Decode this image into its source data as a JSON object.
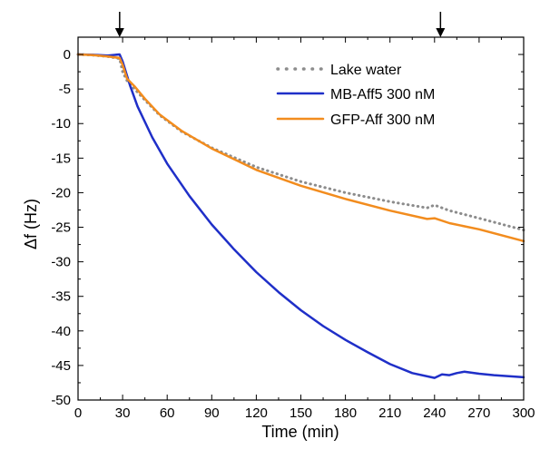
{
  "chart_data": {
    "type": "line",
    "title": "",
    "xlabel": "Time (min)",
    "ylabel": "Δf (Hz)",
    "xlim": [
      0,
      300
    ],
    "ylim": [
      -50,
      2.5
    ],
    "xticks": [
      0,
      30,
      60,
      90,
      120,
      150,
      180,
      210,
      240,
      270,
      300
    ],
    "yticks": [
      0,
      -5,
      -10,
      -15,
      -20,
      -25,
      -30,
      -35,
      -40,
      -45,
      -50
    ],
    "grid": false,
    "legend_position": "top-right",
    "annotations": [
      {
        "type": "arrow-down",
        "x": 28
      },
      {
        "type": "arrow-down",
        "x": 244
      }
    ],
    "series": [
      {
        "name": "Lake water",
        "color": "#8c8c8c",
        "style": "dotted",
        "x": [
          0,
          10,
          20,
          28,
          30,
          33,
          38,
          45,
          55,
          70,
          90,
          120,
          150,
          180,
          210,
          235,
          240,
          250,
          270,
          300
        ],
        "y": [
          0,
          -0.1,
          -0.3,
          -0.6,
          -2.5,
          -3.8,
          -5.0,
          -6.6,
          -8.8,
          -11.2,
          -13.5,
          -16.3,
          -18.4,
          -20.0,
          -21.3,
          -22.2,
          -21.8,
          -22.6,
          -23.7,
          -25.4
        ]
      },
      {
        "name": "MB-Aff5 300 nM",
        "color": "#1f2fc8",
        "style": "solid",
        "x": [
          0,
          10,
          20,
          28,
          30,
          35,
          40,
          50,
          60,
          75,
          90,
          105,
          120,
          135,
          150,
          165,
          180,
          195,
          210,
          225,
          240,
          245,
          250,
          255,
          260,
          270,
          280,
          300
        ],
        "y": [
          0,
          -0.05,
          -0.15,
          0,
          -1.0,
          -4.5,
          -7.5,
          -12.0,
          -15.8,
          -20.5,
          -24.6,
          -28.2,
          -31.5,
          -34.4,
          -37.0,
          -39.3,
          -41.3,
          -43.1,
          -44.8,
          -46.1,
          -46.8,
          -46.3,
          -46.4,
          -46.1,
          -45.9,
          -46.2,
          -46.4,
          -46.7
        ]
      },
      {
        "name": "GFP-Aff 300 nM",
        "color": "#f28c1e",
        "style": "solid",
        "x": [
          0,
          10,
          20,
          28,
          30,
          33,
          38,
          45,
          55,
          70,
          90,
          120,
          150,
          180,
          210,
          235,
          240,
          250,
          270,
          300
        ],
        "y": [
          0,
          -0.1,
          -0.3,
          -0.5,
          -1.5,
          -3.5,
          -4.6,
          -6.4,
          -8.7,
          -11.1,
          -13.6,
          -16.7,
          -19.0,
          -20.9,
          -22.6,
          -23.8,
          -23.7,
          -24.4,
          -25.3,
          -27.0
        ]
      }
    ]
  }
}
